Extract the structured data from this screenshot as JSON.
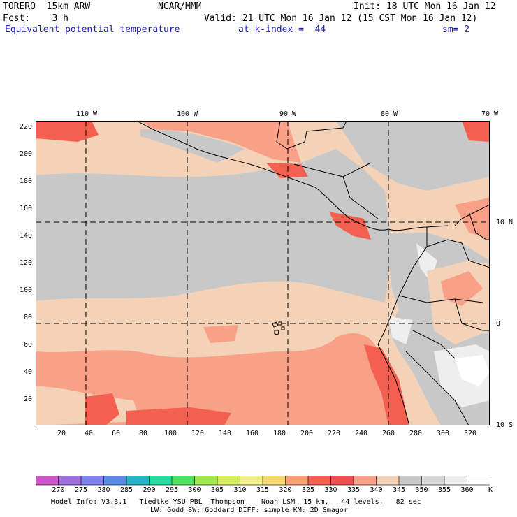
{
  "header": {
    "model": "TORERO  15km ARW",
    "org": "NCAR/MMM",
    "init": "Init: 18 UTC Mon 16 Jan 12",
    "fcst": "Fcst:    3 h",
    "valid": "Valid: 21 UTC Mon 16 Jan 12 (15 CST Mon 16 Jan 12)",
    "field": "Equivalent potential temperature",
    "level": "at k-index =  44",
    "smooth": "sm= 2"
  },
  "map": {
    "y_ticks": [
      "220",
      "200",
      "180",
      "160",
      "140",
      "120",
      "100",
      "80",
      "60",
      "40",
      "20"
    ],
    "x_ticks": [
      "20",
      "40",
      "60",
      "80",
      "100",
      "120",
      "140",
      "160",
      "180",
      "200",
      "220",
      "240",
      "260",
      "280",
      "300",
      "320"
    ],
    "lon_labels": [
      "110 W",
      "100 W",
      "90 W",
      "80 W",
      "70 W"
    ],
    "lat_labels": [
      "10 N",
      "0",
      "10 S"
    ]
  },
  "colorbar": {
    "labels": [
      "270",
      "275",
      "280",
      "285",
      "290",
      "295",
      "300",
      "305",
      "310",
      "315",
      "320",
      "325",
      "330",
      "335",
      "340",
      "345",
      "350",
      "355",
      "360"
    ],
    "unit": "K",
    "colors": [
      "#cc55cc",
      "#a070dc",
      "#8080ee",
      "#5a8ae6",
      "#28b4c8",
      "#28dca0",
      "#50e060",
      "#a0e650",
      "#d8ee60",
      "#f6f08c",
      "#f8d870",
      "#f8a070",
      "#f46050",
      "#ee5050",
      "#f8a088",
      "#f4d2b8",
      "#c8c8c8",
      "#d8d8d8",
      "#eeeeee",
      "#ffffff"
    ]
  },
  "footer": {
    "line1": "Model Info: V3.3.1   Tiedtke YSU PBL  Thompson    Noah LSM  15 km,   44 levels,   82 sec",
    "line2": "LW: Godd SW: Goddard DIFF: simple KM: 2D Smagor"
  }
}
